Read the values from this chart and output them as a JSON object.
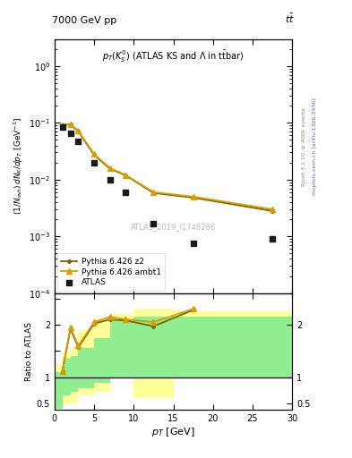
{
  "atlas_x": [
    1.0,
    2.0,
    3.0,
    5.0,
    7.0,
    9.0,
    12.5,
    17.5,
    27.5
  ],
  "atlas_y": [
    0.085,
    0.065,
    0.048,
    0.02,
    0.01,
    0.006,
    0.0017,
    0.00075,
    0.0009
  ],
  "ambt1_x": [
    1.0,
    2.0,
    3.0,
    5.0,
    7.0,
    9.0,
    12.5,
    17.5,
    27.5
  ],
  "ambt1_y": [
    0.092,
    0.095,
    0.072,
    0.028,
    0.016,
    0.012,
    0.006,
    0.005,
    0.003
  ],
  "z2_x": [
    1.0,
    2.0,
    3.0,
    5.0,
    7.0,
    9.0,
    12.5,
    17.5,
    27.5
  ],
  "z2_y": [
    0.092,
    0.093,
    0.07,
    0.027,
    0.0155,
    0.0118,
    0.0058,
    0.0048,
    0.0028
  ],
  "ratio_ambt1_x": [
    1.0,
    2.0,
    3.0,
    5.0,
    7.0,
    9.0,
    12.5,
    17.5
  ],
  "ratio_ambt1_y": [
    1.12,
    1.95,
    1.6,
    2.05,
    2.15,
    2.1,
    2.05,
    2.3
  ],
  "ratio_z2_x": [
    1.0,
    2.0,
    3.0,
    5.0,
    7.0,
    9.0,
    12.5,
    17.5
  ],
  "ratio_z2_y": [
    1.12,
    1.92,
    1.57,
    2.02,
    2.1,
    2.08,
    1.97,
    2.28
  ],
  "green_bin_edges": [
    0.0,
    1.0,
    2.0,
    3.0,
    5.0,
    7.0,
    10.0,
    15.0,
    20.0,
    30.0
  ],
  "green_lo": [
    0.4,
    0.65,
    0.72,
    0.8,
    0.9,
    1.0,
    1.0,
    1.0,
    1.0
  ],
  "green_hi": [
    1.1,
    1.35,
    1.4,
    1.55,
    1.75,
    2.1,
    2.15,
    2.15,
    2.15
  ],
  "yellow_bin_edges": [
    0.0,
    1.0,
    2.0,
    3.0,
    5.0,
    7.0,
    10.0,
    15.0,
    20.0,
    30.0
  ],
  "yellow_lo": [
    0.4,
    0.48,
    0.52,
    0.65,
    0.72,
    1.0,
    0.6,
    1.0,
    1.0
  ],
  "yellow_hi": [
    1.25,
    1.48,
    1.55,
    1.9,
    2.1,
    2.2,
    2.3,
    2.25,
    2.25
  ],
  "color_ambt1": "#d4a000",
  "color_z2": "#7a6200",
  "color_atlas": "#1a1a1a",
  "color_green": "#90ee90",
  "color_yellow": "#ffff99",
  "ylim_main": [
    0.0001,
    3.0
  ],
  "ylim_ratio": [
    0.38,
    2.6
  ],
  "xlim": [
    0,
    30
  ],
  "xlabel": "p_{T} [GeV]",
  "watermark": "ATLAS_2019_I1746286"
}
